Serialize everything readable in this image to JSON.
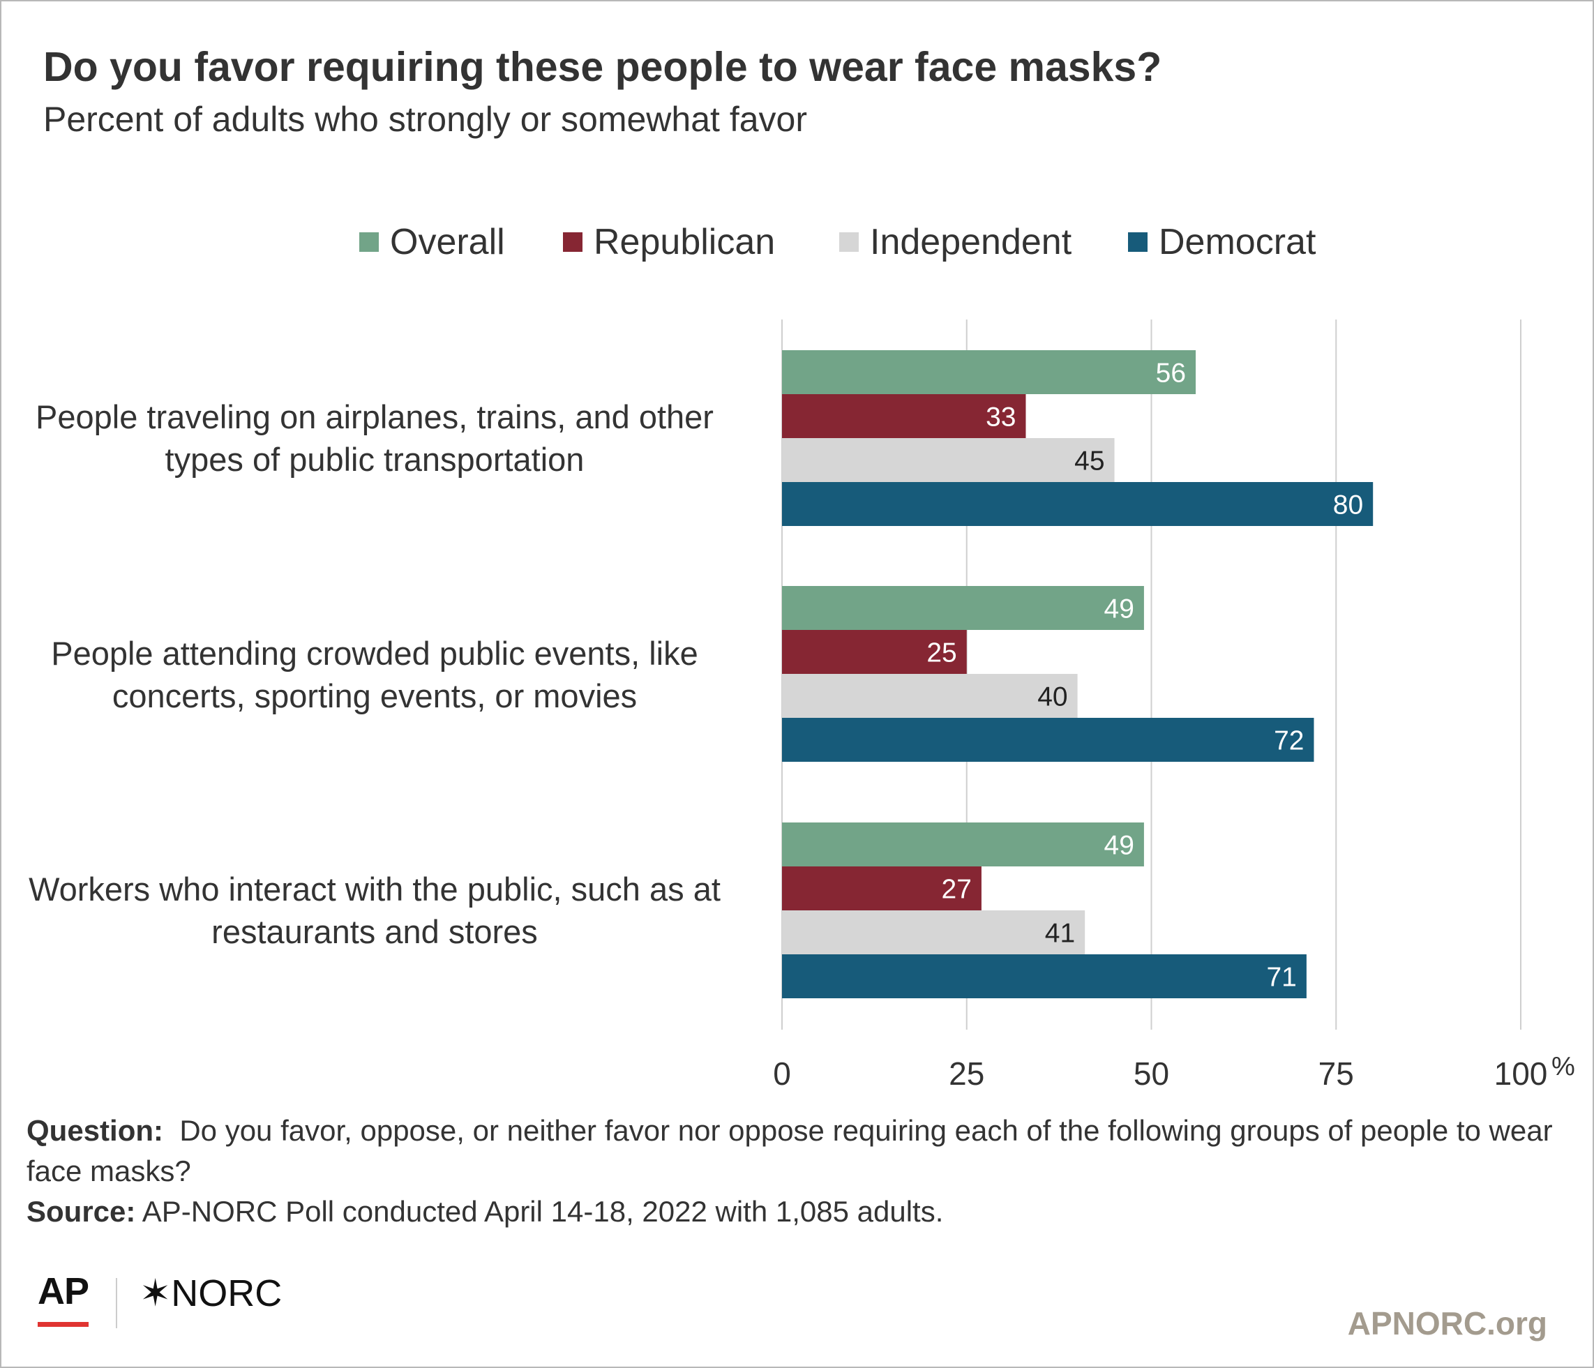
{
  "chart_data": {
    "type": "bar",
    "orientation": "horizontal",
    "title": "Do you favor requiring these people to wear face masks?",
    "subtitle": "Percent of adults who strongly or somewhat favor",
    "categories": [
      "People traveling on airplanes, trains, and other types of public transportation",
      "People attending crowded public events, like concerts, sporting events, or movies",
      "Workers who interact with the public, such as at restaurants and stores"
    ],
    "category_lines": [
      [
        "People traveling on airplanes, trains, and other",
        "types of public transportation"
      ],
      [
        "People attending crowded public events, like",
        "concerts, sporting events, or movies"
      ],
      [
        "Workers who interact with the public, such as at",
        "restaurants and stores"
      ]
    ],
    "series": [
      {
        "name": "Overall",
        "color": "#72a488",
        "label_color": "#ffffff",
        "values": [
          56,
          49,
          49
        ]
      },
      {
        "name": "Republican",
        "color": "#862633",
        "label_color": "#ffffff",
        "values": [
          33,
          25,
          27
        ]
      },
      {
        "name": "Independent",
        "color": "#d6d6d6",
        "label_color": "#222222",
        "values": [
          45,
          40,
          41
        ]
      },
      {
        "name": "Democrat",
        "color": "#175b7a",
        "label_color": "#ffffff",
        "values": [
          80,
          72,
          71
        ]
      }
    ],
    "xlim": [
      0,
      100
    ],
    "x_ticks": [
      0,
      25,
      50,
      75,
      100
    ],
    "x_tick_labels": [
      "0",
      "25",
      "50",
      "75",
      "100"
    ],
    "x_unit": "%",
    "grid": true,
    "legend_position": "top"
  },
  "footnote": {
    "question_label": "Question:",
    "question_text": "Do you favor, oppose, or neither favor nor oppose requiring each of the following groups of people to wear face masks?",
    "source_label": "Source:",
    "source_text": "AP-NORC Poll conducted April 14-18, 2022 with 1,085 adults."
  },
  "branding": {
    "ap_logo": "AP",
    "norc_logo": "✶NORC",
    "website": "APNORC.org"
  }
}
